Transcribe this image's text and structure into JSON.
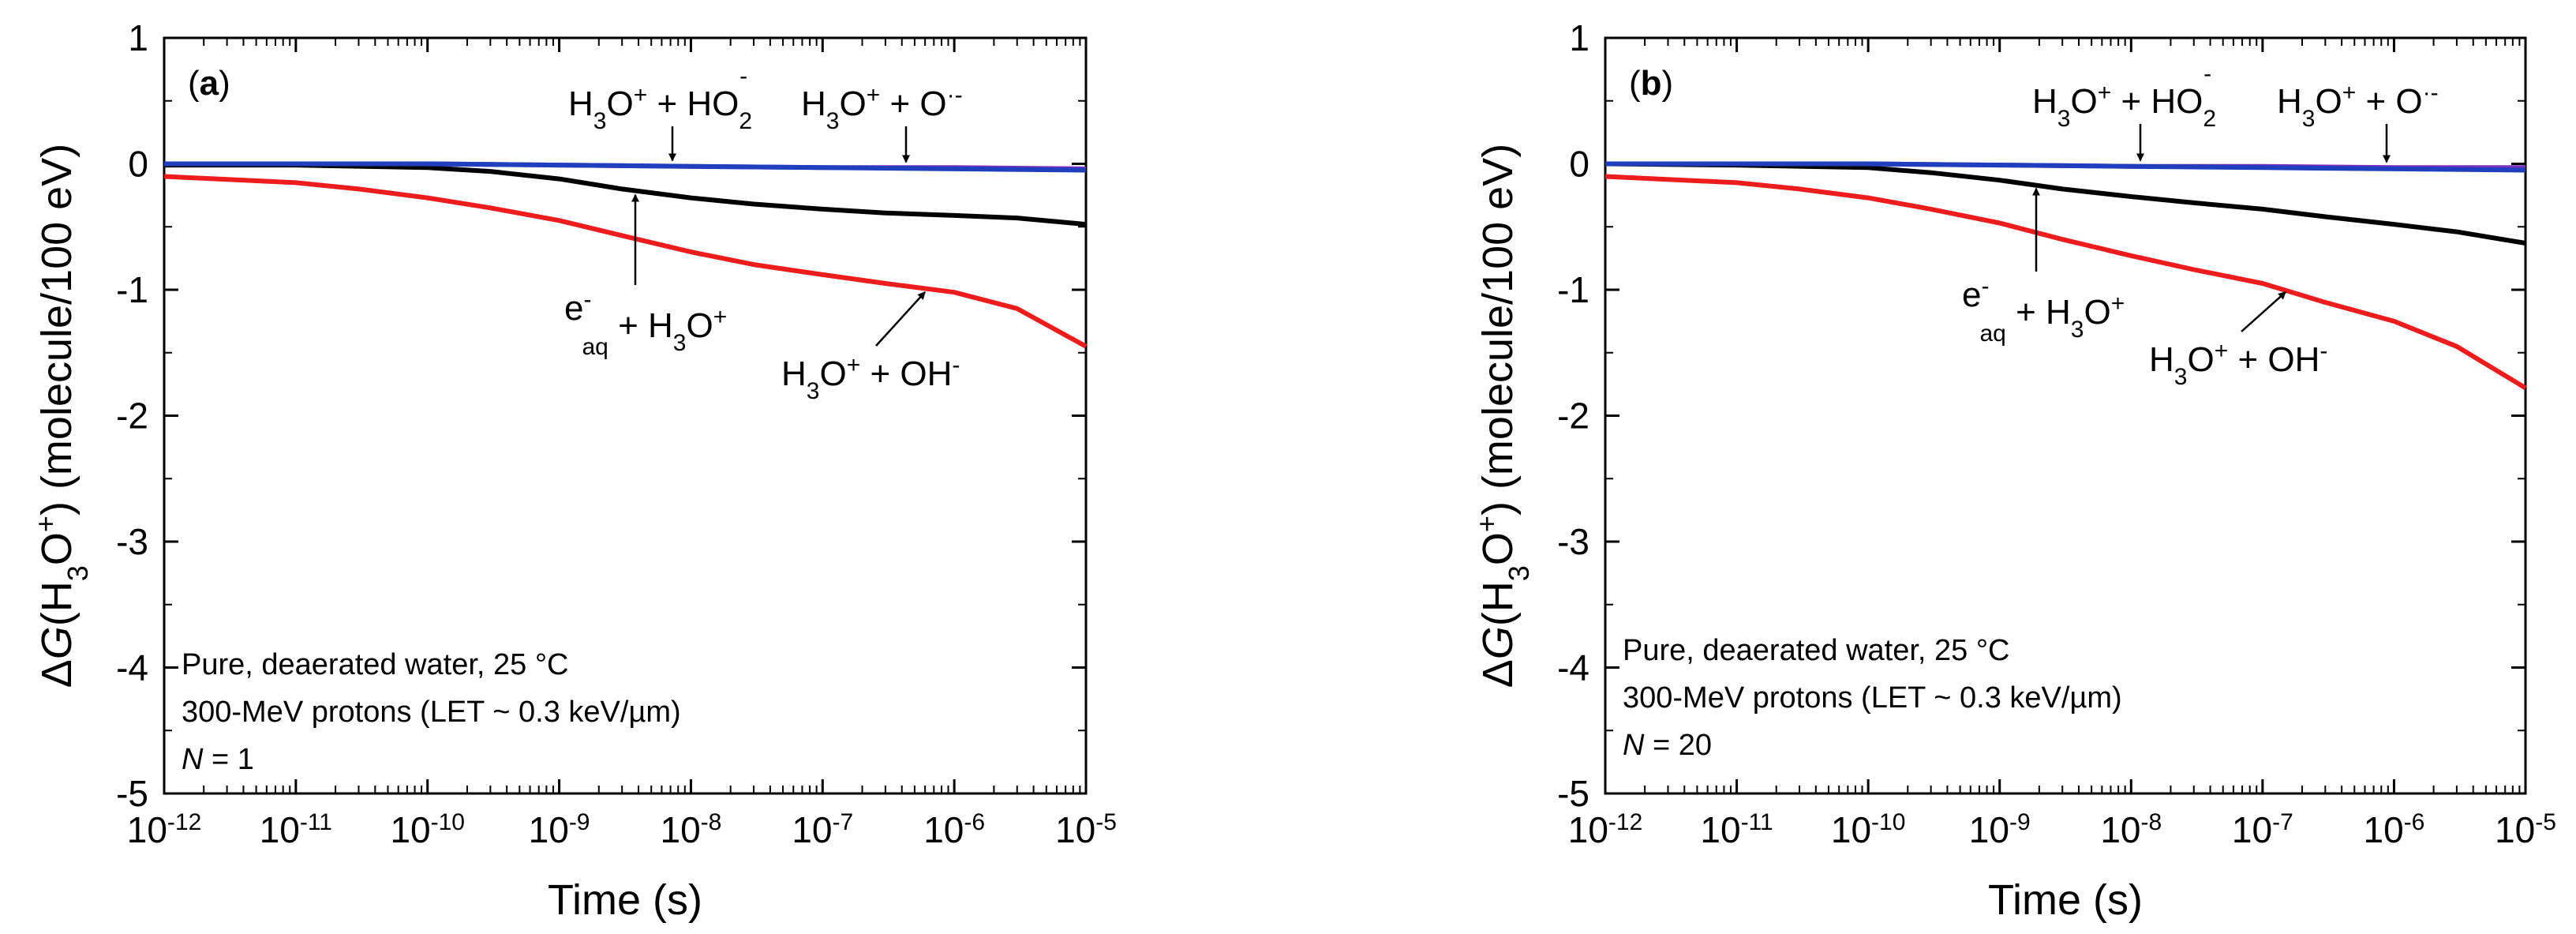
{
  "chart_data": [
    {
      "type": "line",
      "panel_label": "(a)",
      "xlabel": "Time (s)",
      "ylabel": "ΔG(H3O+) (molecule/100 eV)",
      "x_scale": "log",
      "xlim": [
        1e-12,
        1e-05
      ],
      "ylim": [
        -5,
        1
      ],
      "x_tick_labels": [
        "10-12",
        "10-11",
        "10-10",
        "10-9",
        "10-8",
        "10-7",
        "10-6",
        "10-5"
      ],
      "y_tick_labels": [
        "1",
        "0",
        "-1",
        "-2",
        "-3",
        "-4",
        "-5"
      ],
      "series": [
        {
          "name": "H3O+ + HO2-",
          "color": "#7b2fbe",
          "x": [
            1e-12,
            1e-11,
            1e-10,
            1e-09,
            1e-08,
            1e-07,
            1e-06,
            1e-05
          ],
          "y": [
            0,
            0,
            0,
            -0.01,
            -0.02,
            -0.03,
            -0.03,
            -0.04
          ]
        },
        {
          "name": "H3O+ + O·-",
          "color": "#1f3fbf",
          "x": [
            1e-12,
            1e-11,
            1e-10,
            1e-09,
            1e-08,
            1e-07,
            1e-06,
            1e-05
          ],
          "y": [
            0,
            0,
            0,
            -0.01,
            -0.02,
            -0.03,
            -0.04,
            -0.05
          ]
        },
        {
          "name": "e-aq + H3O+",
          "color": "#000000",
          "x": [
            1e-12,
            1e-11,
            1e-10,
            3e-10,
            1e-09,
            3e-09,
            1e-08,
            3e-08,
            1e-07,
            3e-07,
            1e-06,
            3e-06,
            1e-05
          ],
          "y": [
            -0.01,
            -0.01,
            -0.03,
            -0.06,
            -0.12,
            -0.2,
            -0.27,
            -0.32,
            -0.36,
            -0.39,
            -0.41,
            -0.43,
            -0.48
          ]
        },
        {
          "name": "H3O+ + OH-",
          "color": "#ee1c1c",
          "x": [
            1e-12,
            1e-11,
            3e-11,
            1e-10,
            3e-10,
            1e-09,
            3e-09,
            1e-08,
            3e-08,
            1e-07,
            3e-07,
            1e-06,
            3e-06,
            1e-05
          ],
          "y": [
            -0.1,
            -0.15,
            -0.2,
            -0.27,
            -0.35,
            -0.45,
            -0.57,
            -0.7,
            -0.8,
            -0.88,
            -0.95,
            -1.02,
            -1.15,
            -1.45
          ]
        }
      ],
      "annotations": {
        "ho2": {
          "text": "H3O+ + HO2-"
        },
        "o": {
          "text": "H3O+ + O·-"
        },
        "eaq": {
          "text": "e-aq + H3O+"
        },
        "oh": {
          "text": "H3O+ + OH-"
        }
      },
      "note_lines": [
        "Pure, deaerated water, 25 °C",
        "300-MeV protons (LET ~ 0.3 keV/µm)",
        "N = 1"
      ]
    },
    {
      "type": "line",
      "panel_label": "(b)",
      "xlabel": "Time (s)",
      "ylabel": "ΔG(H3O+) (molecule/100 eV)",
      "x_scale": "log",
      "xlim": [
        1e-12,
        1e-05
      ],
      "ylim": [
        -5,
        1
      ],
      "x_tick_labels": [
        "10-12",
        "10-11",
        "10-10",
        "10-9",
        "10-8",
        "10-7",
        "10-6",
        "10-5"
      ],
      "y_tick_labels": [
        "1",
        "0",
        "-1",
        "-2",
        "-3",
        "-4",
        "-5"
      ],
      "series": [
        {
          "name": "H3O+ + HO2-",
          "color": "#7b2fbe",
          "x": [
            1e-12,
            1e-11,
            1e-10,
            1e-09,
            1e-08,
            1e-07,
            1e-06,
            1e-05
          ],
          "y": [
            0,
            0,
            0,
            -0.01,
            -0.02,
            -0.02,
            -0.03,
            -0.03
          ]
        },
        {
          "name": "H3O+ + O·-",
          "color": "#1f3fbf",
          "x": [
            1e-12,
            1e-11,
            1e-10,
            1e-09,
            1e-08,
            1e-07,
            1e-06,
            1e-05
          ],
          "y": [
            0,
            0,
            0,
            -0.01,
            -0.02,
            -0.03,
            -0.04,
            -0.05
          ]
        },
        {
          "name": "e-aq + H3O+",
          "color": "#000000",
          "x": [
            1e-12,
            1e-11,
            1e-10,
            3e-10,
            1e-09,
            3e-09,
            1e-08,
            3e-08,
            1e-07,
            3e-07,
            1e-06,
            3e-06,
            1e-05
          ],
          "y": [
            0,
            -0.01,
            -0.03,
            -0.07,
            -0.13,
            -0.2,
            -0.26,
            -0.31,
            -0.36,
            -0.42,
            -0.48,
            -0.54,
            -0.63
          ]
        },
        {
          "name": "H3O+ + OH-",
          "color": "#ee1c1c",
          "x": [
            1e-12,
            1e-11,
            3e-11,
            1e-10,
            3e-10,
            1e-09,
            3e-09,
            1e-08,
            3e-08,
            1e-07,
            3e-07,
            1e-06,
            3e-06,
            1e-05
          ],
          "y": [
            -0.1,
            -0.15,
            -0.2,
            -0.27,
            -0.36,
            -0.47,
            -0.6,
            -0.73,
            -0.84,
            -0.95,
            -1.1,
            -1.25,
            -1.45,
            -1.78
          ]
        }
      ],
      "annotations": {
        "ho2": {
          "text": "H3O+ + HO2-"
        },
        "o": {
          "text": "H3O+ + O·-"
        },
        "eaq": {
          "text": "e-aq + H3O+"
        },
        "oh": {
          "text": "H3O+ + OH-"
        }
      },
      "note_lines": [
        "Pure, deaerated water, 25 °C",
        "300-MeV protons (LET ~ 0.3 keV/µm)",
        "N = 20"
      ]
    }
  ]
}
